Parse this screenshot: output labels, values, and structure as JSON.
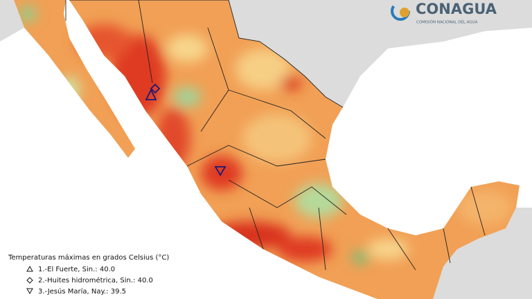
{
  "logo": {
    "name": "CONAGUA",
    "subtitle": "COMISIÓN NACIONAL DEL AGUA"
  },
  "legend": {
    "title": "Temperaturas máximas en grados Celsius (°C)",
    "entries": [
      "1.-El Fuerte, Sin.: 40.0",
      "2.-Huites hidrométrica, Sin.: 40.0",
      "3.-Jesús María, Nay.: 39.5"
    ]
  }
}
